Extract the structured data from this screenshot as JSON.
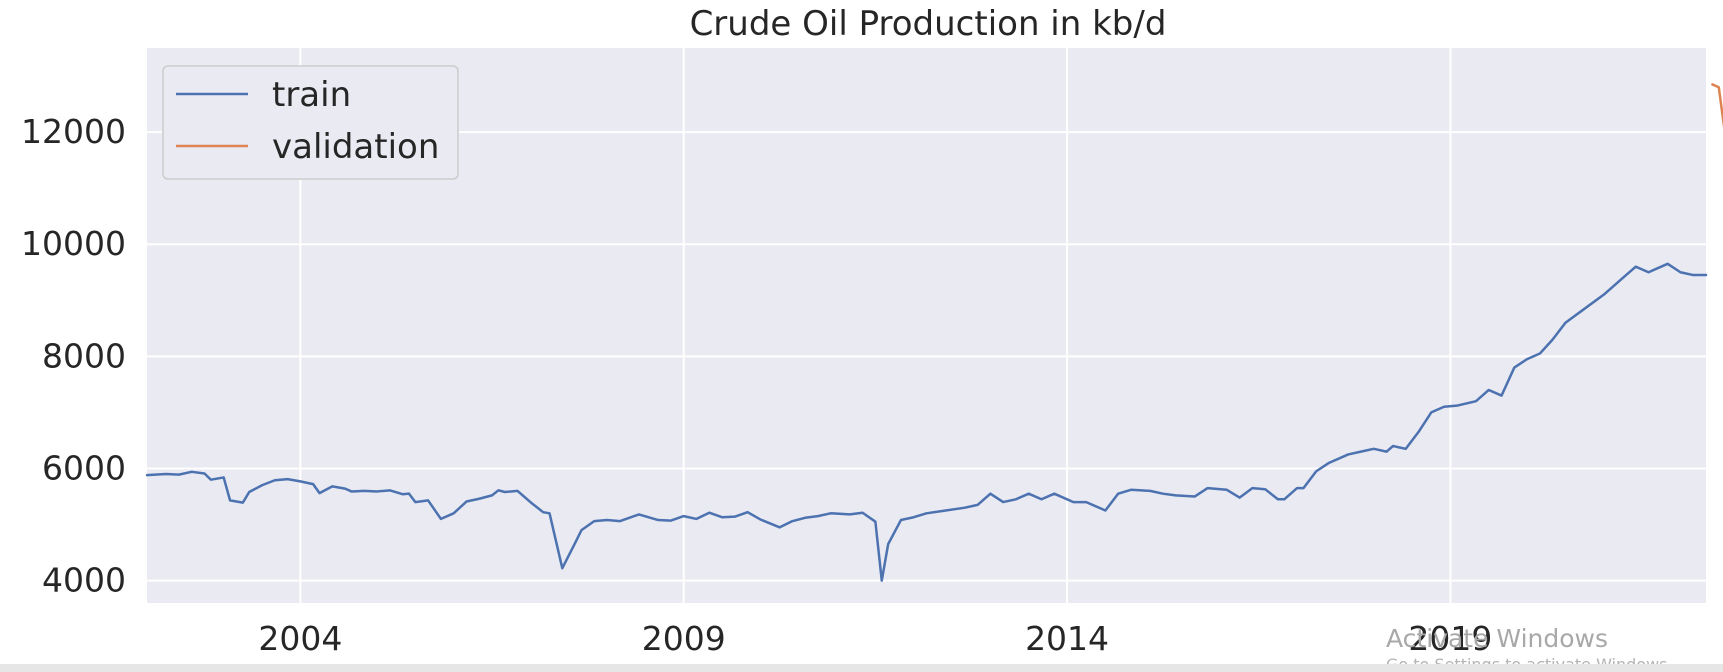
{
  "colors": {
    "plot_background": "#eaeaf2",
    "grid": "#ffffff",
    "train": "#4c72b0",
    "validation": "#dd8452",
    "text": "#262626",
    "bottom_bar": "#e6e6e6"
  },
  "watermark": {
    "main": "Activate Windows",
    "sub": "Go to Settings to activate Windows."
  },
  "chart_data": {
    "type": "line",
    "title": "Crude Oil Production in kb/d",
    "xlabel": "",
    "ylabel": "",
    "x_axis_type": "date",
    "xlim": [
      "2002-01",
      "2022-05"
    ],
    "ylim": [
      3600,
      13500
    ],
    "grid": true,
    "legend_position": "top-left",
    "x_ticks": [
      "2004",
      "2009",
      "2014",
      "2019"
    ],
    "y_ticks": [
      4000,
      6000,
      8000,
      10000,
      12000
    ],
    "series": [
      {
        "name": "train",
        "points": [
          [
            "2002-01",
            5880
          ],
          [
            "2002-04",
            5900
          ],
          [
            "2002-06",
            5890
          ],
          [
            "2002-08",
            5940
          ],
          [
            "2002-10",
            5910
          ],
          [
            "2002-11",
            5800
          ],
          [
            "2003-01",
            5840
          ],
          [
            "2003-02",
            5430
          ],
          [
            "2003-04",
            5390
          ],
          [
            "2003-05",
            5580
          ],
          [
            "2003-07",
            5700
          ],
          [
            "2003-09",
            5790
          ],
          [
            "2003-11",
            5810
          ],
          [
            "2004-01",
            5770
          ],
          [
            "2004-03",
            5720
          ],
          [
            "2004-04",
            5560
          ],
          [
            "2004-06",
            5680
          ],
          [
            "2004-08",
            5640
          ],
          [
            "2004-09",
            5590
          ],
          [
            "2004-11",
            5600
          ],
          [
            "2005-01",
            5590
          ],
          [
            "2005-03",
            5610
          ],
          [
            "2005-05",
            5540
          ],
          [
            "2005-06",
            5550
          ],
          [
            "2005-07",
            5400
          ],
          [
            "2005-09",
            5430
          ],
          [
            "2005-11",
            5100
          ],
          [
            "2006-01",
            5200
          ],
          [
            "2006-03",
            5410
          ],
          [
            "2006-05",
            5460
          ],
          [
            "2006-07",
            5520
          ],
          [
            "2006-08",
            5610
          ],
          [
            "2006-09",
            5580
          ],
          [
            "2006-11",
            5600
          ],
          [
            "2007-01",
            5400
          ],
          [
            "2007-03",
            5220
          ],
          [
            "2007-04",
            5200
          ],
          [
            "2007-06",
            4220
          ],
          [
            "2007-08",
            4670
          ],
          [
            "2007-09",
            4900
          ],
          [
            "2007-11",
            5060
          ],
          [
            "2008-01",
            5080
          ],
          [
            "2008-03",
            5060
          ],
          [
            "2008-06",
            5180
          ],
          [
            "2008-09",
            5080
          ],
          [
            "2008-11",
            5070
          ],
          [
            "2009-01",
            5150
          ],
          [
            "2009-03",
            5100
          ],
          [
            "2009-05",
            5210
          ],
          [
            "2009-07",
            5130
          ],
          [
            "2009-09",
            5140
          ],
          [
            "2009-11",
            5220
          ],
          [
            "2010-01",
            5090
          ],
          [
            "2010-04",
            4950
          ],
          [
            "2010-06",
            5060
          ],
          [
            "2010-08",
            5120
          ],
          [
            "2010-10",
            5150
          ],
          [
            "2010-12",
            5200
          ],
          [
            "2011-03",
            5180
          ],
          [
            "2011-05",
            5210
          ],
          [
            "2011-07",
            5050
          ],
          [
            "2011-08",
            4000
          ],
          [
            "2011-09",
            4650
          ],
          [
            "2011-11",
            5080
          ],
          [
            "2012-01",
            5130
          ],
          [
            "2012-03",
            5200
          ],
          [
            "2012-06",
            5250
          ],
          [
            "2012-09",
            5300
          ],
          [
            "2012-11",
            5350
          ],
          [
            "2013-01",
            5550
          ],
          [
            "2013-03",
            5400
          ],
          [
            "2013-05",
            5450
          ],
          [
            "2013-07",
            5550
          ],
          [
            "2013-09",
            5450
          ],
          [
            "2013-11",
            5550
          ],
          [
            "2014-02",
            5400
          ],
          [
            "2014-04",
            5400
          ],
          [
            "2014-07",
            5250
          ],
          [
            "2014-09",
            5550
          ],
          [
            "2014-11",
            5620
          ],
          [
            "2015-02",
            5600
          ],
          [
            "2015-04",
            5550
          ],
          [
            "2015-06",
            5520
          ],
          [
            "2015-09",
            5500
          ],
          [
            "2015-11",
            5650
          ],
          [
            "2016-02",
            5620
          ],
          [
            "2016-04",
            5480
          ],
          [
            "2016-06",
            5650
          ],
          [
            "2016-08",
            5630
          ],
          [
            "2016-10",
            5450
          ],
          [
            "2016-11",
            5450
          ],
          [
            "2017-01",
            5650
          ],
          [
            "2017-02",
            5650
          ],
          [
            "2017-04",
            5950
          ],
          [
            "2017-06",
            6100
          ],
          [
            "2017-09",
            6250
          ],
          [
            "2017-11",
            6300
          ],
          [
            "2018-01",
            6350
          ],
          [
            "2018-03",
            6300
          ],
          [
            "2018-04",
            6400
          ],
          [
            "2018-06",
            6350
          ],
          [
            "2018-08",
            6650
          ],
          [
            "2018-10",
            7000
          ],
          [
            "2018-12",
            7100
          ],
          [
            "2019-02",
            7120
          ],
          [
            "2019-05",
            7200
          ],
          [
            "2019-07",
            7400
          ],
          [
            "2019-09",
            7300
          ],
          [
            "2019-11",
            7800
          ],
          [
            "2020-01",
            7950
          ],
          [
            "2020-03",
            8050
          ],
          [
            "2020-05",
            8300
          ],
          [
            "2020-07",
            8600
          ],
          [
            "2020-10",
            8850
          ],
          [
            "2021-01",
            9100
          ],
          [
            "2021-04",
            9400
          ],
          [
            "2021-06",
            9600
          ],
          [
            "2021-08",
            9500
          ],
          [
            "2021-11",
            9650
          ],
          [
            "2022-01",
            9500
          ],
          [
            "2022-03",
            9450
          ],
          [
            "2022-05",
            9450
          ]
        ]
      },
      {
        "name": "validation",
        "points": []
      }
    ]
  }
}
